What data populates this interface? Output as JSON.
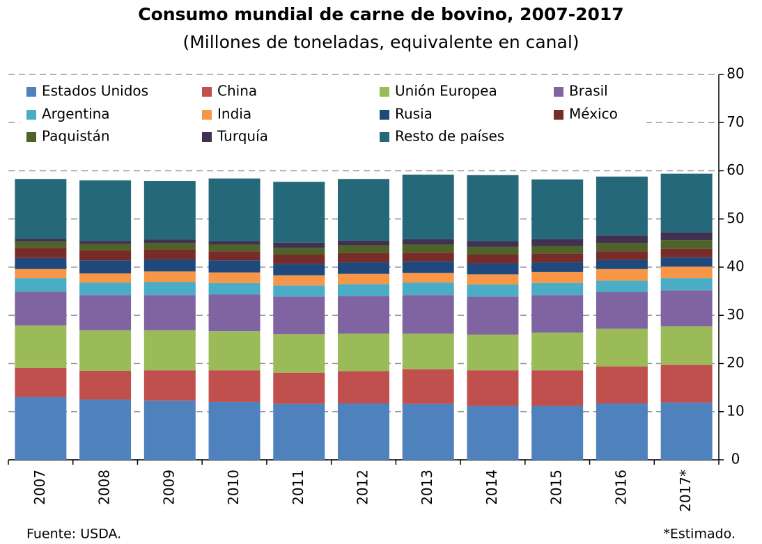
{
  "chart_data": {
    "type": "stacked_bar",
    "title": "Consumo mundial de carne de bovino, 2007-2017",
    "subtitle": "(Millones de toneladas, equivalente en canal)",
    "categories": [
      "2007",
      "2008",
      "2009",
      "2010",
      "2011",
      "2012",
      "2013",
      "2014",
      "2015",
      "2016",
      "2017*"
    ],
    "series": [
      {
        "name": "Estados Unidos",
        "color": "#4f81bd",
        "values": [
          13.0,
          12.5,
          12.3,
          12.0,
          11.6,
          11.7,
          11.6,
          11.2,
          11.2,
          11.7,
          11.9
        ]
      },
      {
        "name": "China",
        "color": "#c0504d",
        "values": [
          6.1,
          6.0,
          6.3,
          6.6,
          6.5,
          6.7,
          7.2,
          7.4,
          7.4,
          7.7,
          7.8
        ]
      },
      {
        "name": "Unión Europea",
        "color": "#9bbb59",
        "values": [
          8.8,
          8.4,
          8.3,
          8.1,
          8.0,
          7.8,
          7.4,
          7.4,
          7.8,
          7.8,
          8.0
        ]
      },
      {
        "name": "Brasil",
        "color": "#8064a2",
        "values": [
          7.0,
          7.3,
          7.3,
          7.6,
          7.8,
          7.8,
          8.0,
          7.9,
          7.8,
          7.6,
          7.5
        ]
      },
      {
        "name": "Argentina",
        "color": "#4bacc6",
        "values": [
          2.8,
          2.6,
          2.7,
          2.4,
          2.3,
          2.5,
          2.6,
          2.5,
          2.5,
          2.4,
          2.5
        ]
      },
      {
        "name": "India",
        "color": "#f79646",
        "values": [
          1.9,
          1.9,
          2.2,
          2.2,
          2.1,
          2.1,
          2.0,
          2.1,
          2.3,
          2.4,
          2.4
        ]
      },
      {
        "name": "Rusia",
        "color": "#1f497d",
        "values": [
          2.3,
          2.7,
          2.5,
          2.5,
          2.4,
          2.4,
          2.4,
          2.3,
          2.0,
          1.9,
          1.9
        ]
      },
      {
        "name": "México",
        "color": "#772c2a",
        "values": [
          2.1,
          2.1,
          2.1,
          1.9,
          1.9,
          1.9,
          1.8,
          1.8,
          1.8,
          1.8,
          1.8
        ]
      },
      {
        "name": "Paquistán",
        "color": "#4f6228",
        "values": [
          1.3,
          1.3,
          1.3,
          1.4,
          1.4,
          1.6,
          1.7,
          1.6,
          1.6,
          1.7,
          1.8
        ]
      },
      {
        "name": "Turquía",
        "color": "#403151",
        "values": [
          0.6,
          0.6,
          0.7,
          0.7,
          1.1,
          1.0,
          1.1,
          1.2,
          1.4,
          1.6,
          1.6
        ]
      },
      {
        "name": "Resto de países",
        "color": "#25687a",
        "values": [
          12.4,
          12.6,
          12.2,
          13.0,
          12.6,
          12.8,
          13.4,
          13.7,
          12.4,
          12.2,
          12.2
        ]
      }
    ],
    "ylim": [
      0,
      80
    ],
    "yticks": [
      0,
      10,
      20,
      30,
      40,
      50,
      60,
      70,
      80
    ],
    "grid": true,
    "source": "Fuente: USDA.",
    "note": "*Estimado."
  }
}
